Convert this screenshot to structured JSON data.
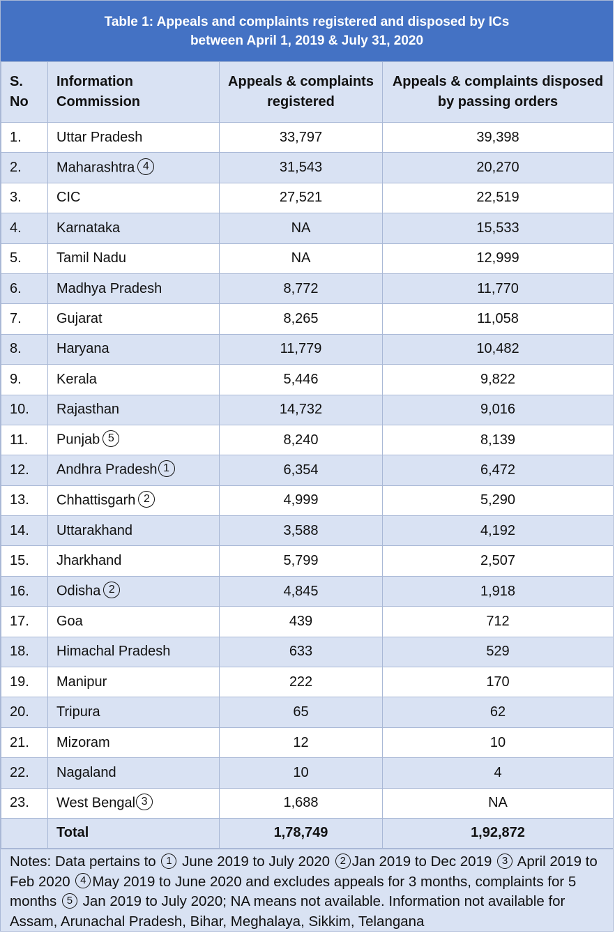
{
  "title": {
    "line1": "Table 1: Appeals and complaints registered and disposed by ICs",
    "line2": "between April 1, 2019 & July 31, 2020"
  },
  "headers": {
    "sno": "S. No",
    "commission": "Information Commission",
    "registered": "Appeals & complaints registered",
    "disposed": "Appeals & complaints disposed by passing orders"
  },
  "rows": [
    {
      "sno": "1.",
      "name": "Uttar Pradesh",
      "note": "",
      "registered": "33,797",
      "disposed": "39,398"
    },
    {
      "sno": "2.",
      "name": "Maharashtra",
      "note": "4",
      "registered": "31,543",
      "disposed": "20,270"
    },
    {
      "sno": "3.",
      "name": "CIC",
      "note": "",
      "registered": "27,521",
      "disposed": "22,519"
    },
    {
      "sno": "4.",
      "name": "Karnataka",
      "note": "",
      "registered": "NA",
      "disposed": "15,533"
    },
    {
      "sno": "5.",
      "name": "Tamil Nadu",
      "note": "",
      "registered": "NA",
      "disposed": "12,999"
    },
    {
      "sno": "6.",
      "name": "Madhya Pradesh",
      "note": "",
      "registered": "8,772",
      "disposed": "11,770"
    },
    {
      "sno": "7.",
      "name": "Gujarat",
      "note": "",
      "registered": "8,265",
      "disposed": "11,058"
    },
    {
      "sno": "8.",
      "name": "Haryana",
      "note": "",
      "registered": "11,779",
      "disposed": "10,482"
    },
    {
      "sno": "9.",
      "name": "Kerala",
      "note": "",
      "registered": "5,446",
      "disposed": "9,822"
    },
    {
      "sno": "10.",
      "name": "Rajasthan",
      "note": "",
      "registered": "14,732",
      "disposed": "9,016"
    },
    {
      "sno": "11.",
      "name": "Punjab",
      "note": "5",
      "registered": "8,240",
      "disposed": "8,139"
    },
    {
      "sno": "12.",
      "name": "Andhra Pradesh",
      "note": "1",
      "registered": "6,354",
      "disposed": "6,472"
    },
    {
      "sno": "13.",
      "name": "Chhattisgarh",
      "note": "2",
      "registered": "4,999",
      "disposed": "5,290"
    },
    {
      "sno": "14.",
      "name": "Uttarakhand",
      "note": "",
      "registered": "3,588",
      "disposed": "4,192"
    },
    {
      "sno": "15.",
      "name": "Jharkhand",
      "note": "",
      "registered": "5,799",
      "disposed": "2,507"
    },
    {
      "sno": "16.",
      "name": "Odisha",
      "note": "2",
      "registered": "4,845",
      "disposed": "1,918"
    },
    {
      "sno": "17.",
      "name": "Goa",
      "note": "",
      "registered": "439",
      "disposed": "712"
    },
    {
      "sno": "18.",
      "name": "Himachal Pradesh",
      "note": "",
      "registered": "633",
      "disposed": "529"
    },
    {
      "sno": "19.",
      "name": "Manipur",
      "note": "",
      "registered": "222",
      "disposed": "170"
    },
    {
      "sno": "20.",
      "name": "Tripura",
      "note": "",
      "registered": "65",
      "disposed": "62"
    },
    {
      "sno": "21.",
      "name": "Mizoram",
      "note": "",
      "registered": "12",
      "disposed": "10"
    },
    {
      "sno": "22.",
      "name": "Nagaland",
      "note": "",
      "registered": "10",
      "disposed": "4"
    },
    {
      "sno": "23.",
      "name": "West Bengal",
      "note": "3",
      "registered": "1,688",
      "disposed": "NA"
    }
  ],
  "total": {
    "label": "Total",
    "registered": "1,78,749",
    "disposed": "1,92,872"
  },
  "notes": {
    "prefix": "Notes: Data pertains to",
    "items": [
      {
        "marker": "1",
        "text": "June 2019 to July 2020"
      },
      {
        "marker": "2",
        "text": "Jan 2019 to Dec 2019"
      },
      {
        "marker": "3",
        "text": "April 2019 to Feb 2020"
      },
      {
        "marker": "4",
        "text": "May 2019 to June 2020 and excludes appeals for 3 months, complaints for 5 months"
      },
      {
        "marker": "5",
        "text": "Jan 2019 to July 2020; NA means not available. Information not available for Assam, Arunachal Pradesh, Bihar, Meghalaya, Sikkim, Telangana"
      }
    ]
  },
  "colors": {
    "header_blue": "#4472c4",
    "band_light": "#d9e2f3",
    "border": "#a9b8d6"
  }
}
